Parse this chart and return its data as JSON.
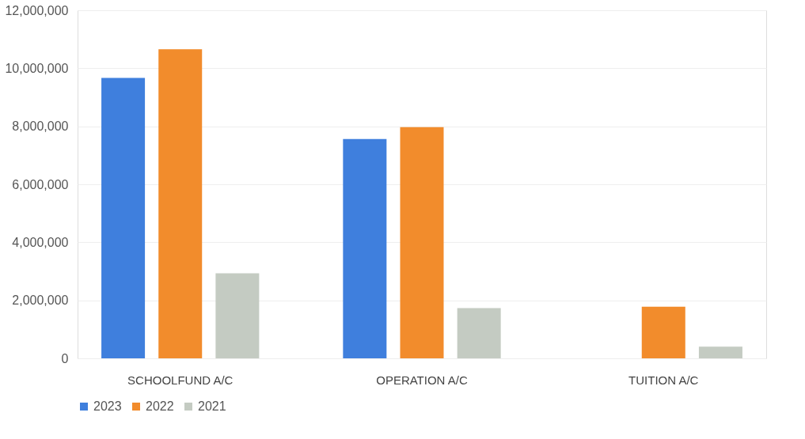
{
  "chart_data": {
    "type": "bar",
    "categories": [
      "SCHOOLFUND A/C",
      "OPERATION A/C",
      "TUITION A/C"
    ],
    "series": [
      {
        "name": "2023",
        "color": "#3f7fdd",
        "values": [
          9670000,
          7560000,
          null
        ]
      },
      {
        "name": "2022",
        "color": "#f28c2c",
        "values": [
          10660000,
          7970000,
          1780000
        ]
      },
      {
        "name": "2021",
        "color": "#c4cbc2",
        "values": [
          2930000,
          1730000,
          400000
        ]
      }
    ],
    "ylim": [
      0,
      12000000
    ],
    "yticks": [
      {
        "value": 0,
        "label": "0"
      },
      {
        "value": 2000000,
        "label": "2,000,000"
      },
      {
        "value": 4000000,
        "label": "4,000,000"
      },
      {
        "value": 6000000,
        "label": "6,000,000"
      },
      {
        "value": 8000000,
        "label": "8,000,000"
      },
      {
        "value": 10000000,
        "label": "10,000,000"
      },
      {
        "value": 12000000,
        "label": "12,000,000"
      }
    ],
    "grid": "y",
    "legend": "bottom"
  }
}
